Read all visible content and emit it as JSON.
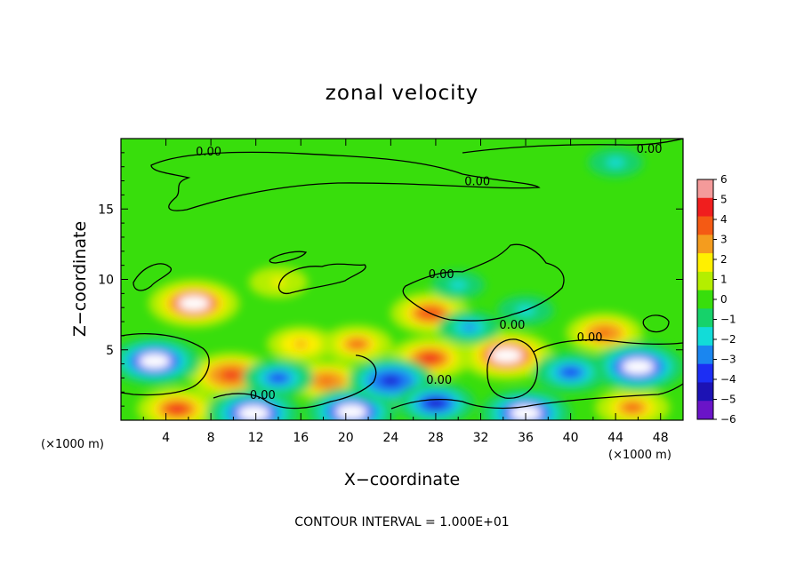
{
  "chart_data": {
    "type": "heatmap",
    "title": "zonal velocity",
    "xlabel": "X−coordinate",
    "ylabel": "Z−coordinate",
    "x_unit": "(×1000 m)",
    "z_unit": "(×1000 m)",
    "xlim": [
      0,
      50
    ],
    "ylim": [
      0,
      20
    ],
    "x_ticks": [
      "4",
      "8",
      "12",
      "16",
      "20",
      "24",
      "28",
      "32",
      "36",
      "40",
      "44",
      "48"
    ],
    "y_ticks": [
      "5",
      "10",
      "15"
    ],
    "x_tick_values": [
      4,
      8,
      12,
      16,
      20,
      24,
      28,
      32,
      36,
      40,
      44,
      48
    ],
    "y_tick_values": [
      5,
      10,
      15
    ],
    "colorbar": {
      "range": [
        -6,
        6
      ],
      "ticks": [
        "6",
        "5",
        "4",
        "3",
        "2",
        "1",
        "0",
        "−1",
        "−2",
        "−3",
        "−4",
        "−5",
        "−6"
      ],
      "colors": [
        "#f49a9a",
        "#f01e1e",
        "#f45a14",
        "#f49c1e",
        "#fff000",
        "#b4ee00",
        "#38de0c",
        "#16d26a",
        "#12dcd8",
        "#1a86f0",
        "#1c2ef4",
        "#1c12b4",
        "#6a14c8"
      ]
    },
    "contour_labels": [
      {
        "text": "0.00",
        "x": 7.8,
        "z": 18.8
      },
      {
        "text": "0.00",
        "x": 47.0,
        "z": 19.0
      },
      {
        "text": "0.00",
        "x": 31.7,
        "z": 16.7
      },
      {
        "text": "0.00",
        "x": 28.5,
        "z": 10.1
      },
      {
        "text": "0.00",
        "x": 34.8,
        "z": 6.5
      },
      {
        "text": "0.00",
        "x": 41.7,
        "z": 5.6
      },
      {
        "text": "0.00",
        "x": 28.3,
        "z": 2.6
      },
      {
        "text": "0.00",
        "x": 12.6,
        "z": 1.5
      }
    ],
    "blobs": [
      {
        "x": 6.5,
        "z": 8.3,
        "v": 5.8
      },
      {
        "x": 9.8,
        "z": 3.2,
        "v": 5.2
      },
      {
        "x": 18.3,
        "z": 2.8,
        "v": 4.2
      },
      {
        "x": 27.5,
        "z": 4.4,
        "v": 4.8
      },
      {
        "x": 34.3,
        "z": 4.6,
        "v": 6.0
      },
      {
        "x": 27.5,
        "z": 7.6,
        "v": 4.5
      },
      {
        "x": 21.0,
        "z": 5.4,
        "v": 3.6
      },
      {
        "x": 24.5,
        "z": 2.2,
        "v": 3.0
      },
      {
        "x": 5.0,
        "z": 0.8,
        "v": 4.6
      },
      {
        "x": 16.0,
        "z": 5.4,
        "v": 3.2
      },
      {
        "x": 43.0,
        "z": 6.2,
        "v": 4.2
      },
      {
        "x": 45.5,
        "z": 0.9,
        "v": 4.0
      },
      {
        "x": 14.0,
        "z": 9.8,
        "v": 2.2
      },
      {
        "x": 3.0,
        "z": 4.2,
        "v": -5.8
      },
      {
        "x": 11.8,
        "z": 0.5,
        "v": -6.0
      },
      {
        "x": 20.5,
        "z": 0.6,
        "v": -5.8
      },
      {
        "x": 46.0,
        "z": 3.8,
        "v": -6.0
      },
      {
        "x": 40.0,
        "z": 3.4,
        "v": -4.0
      },
      {
        "x": 24.0,
        "z": 2.8,
        "v": -5.2
      },
      {
        "x": 36.0,
        "z": 0.5,
        "v": -5.8
      },
      {
        "x": 31.0,
        "z": 6.6,
        "v": -2.6
      },
      {
        "x": 36.0,
        "z": 7.8,
        "v": -2.0
      },
      {
        "x": 30.0,
        "z": 9.6,
        "v": -1.6
      },
      {
        "x": 44.0,
        "z": 18.3,
        "v": -1.8
      },
      {
        "x": 28.0,
        "z": 1.2,
        "v": -4.5
      },
      {
        "x": 14.0,
        "z": 3.0,
        "v": -3.5
      }
    ]
  },
  "footer": {
    "contour_interval": "CONTOUR INTERVAL = 1.000E+01"
  }
}
